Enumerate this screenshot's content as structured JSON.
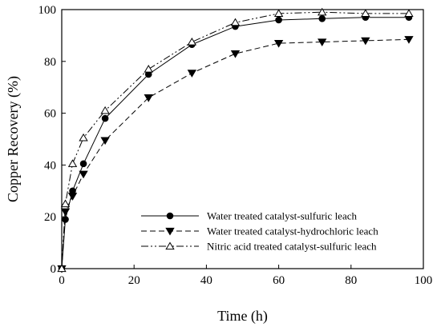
{
  "chart_data": {
    "type": "line",
    "xlabel": "Time (h)",
    "ylabel": "Copper Recovery (%)",
    "xlim": [
      0,
      100
    ],
    "ylim": [
      0,
      100
    ],
    "xticks": [
      0,
      20,
      40,
      60,
      80,
      100
    ],
    "yticks": [
      0,
      20,
      40,
      60,
      80,
      100
    ],
    "grid": false,
    "legend_position": "bottom-right",
    "series": [
      {
        "name": "Water treated catalyst-sulfuric leach",
        "line_style": "solid",
        "marker": "filled-circle",
        "x": [
          0,
          1,
          3,
          6,
          12,
          24,
          36,
          48,
          60,
          72,
          84,
          96
        ],
        "y": [
          0,
          19,
          30,
          40.5,
          58,
          75,
          86.5,
          93.5,
          96,
          96.5,
          97,
          97
        ]
      },
      {
        "name": "Water treated catalyst-hydrochloric leach",
        "line_style": "dashed",
        "marker": "filled-triangle-down",
        "x": [
          0,
          1,
          3,
          6,
          12,
          24,
          36,
          48,
          60,
          72,
          84,
          96
        ],
        "y": [
          0,
          22,
          28,
          36.5,
          49.5,
          66,
          75.5,
          83,
          87,
          87.5,
          88,
          88.5
        ]
      },
      {
        "name": "Nitric acid treated catalyst-sulfuric leach",
        "line_style": "dash-dot-dot",
        "marker": "open-triangle-up",
        "x": [
          0,
          1,
          3,
          6,
          12,
          24,
          36,
          48,
          60,
          72,
          84,
          96
        ],
        "y": [
          0,
          25,
          40.5,
          50.5,
          61,
          77,
          87.5,
          95,
          98.5,
          99,
          98.5,
          98.5
        ]
      }
    ]
  }
}
